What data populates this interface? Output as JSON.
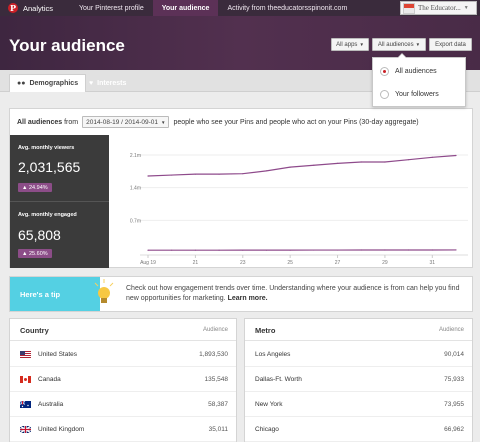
{
  "topnav": {
    "brand": "Analytics",
    "tabs": [
      {
        "label": "Your Pinterest profile"
      },
      {
        "label": "Your audience"
      },
      {
        "label": "Activity from theeducatorsspinonit.com"
      }
    ],
    "account_name": "The Educator..."
  },
  "header": {
    "title": "Your audience",
    "apps_button": "All apps",
    "audiences_button": "All audiences",
    "export_button": "Export data"
  },
  "subtabs": [
    {
      "label": "Demographics",
      "icon": "people-icon"
    },
    {
      "label": "Interests",
      "icon": "heart-icon"
    }
  ],
  "dropdown": {
    "options": [
      {
        "label": "All audiences",
        "selected": true
      },
      {
        "label": "Your followers",
        "selected": false
      }
    ]
  },
  "filter": {
    "prefix": "All audiences",
    "from": "from",
    "date_range": "2014-08-19 / 2014-09-01",
    "suffix": "people who see your Pins and people who act on your Pins (30-day aggregate)"
  },
  "stats": [
    {
      "label": "Avg. monthly viewers",
      "value": "2,031,565",
      "change": "24.94%"
    },
    {
      "label": "Avg. monthly engaged",
      "value": "65,808",
      "change": "25.60%"
    }
  ],
  "chart_data": {
    "type": "line",
    "x_ticks": [
      "Aug 19",
      "21",
      "23",
      "25",
      "27",
      "29",
      "31"
    ],
    "y_ticks": [
      "2.1m",
      "1.4m",
      "0.7m"
    ],
    "ylim": [
      0,
      2400000
    ],
    "x": [
      "Aug 19",
      "Aug 20",
      "Aug 21",
      "Aug 22",
      "Aug 23",
      "Aug 24",
      "Aug 25",
      "Aug 26",
      "Aug 27",
      "Aug 28",
      "Aug 29",
      "Aug 30",
      "Aug 31",
      "Sep 1"
    ],
    "series": [
      {
        "values": [
          1650000,
          1670000,
          1690000,
          1690000,
          1700000,
          1760000,
          1840000,
          1880000,
          1920000,
          1950000,
          1950000,
          2000000,
          2050000,
          2090000
        ]
      },
      {
        "values": [
          60000,
          60000,
          60000,
          60000,
          61000,
          62000,
          62000,
          63000,
          63000,
          64000,
          64000,
          65000,
          65000,
          66000
        ]
      }
    ],
    "color": "#8e4a8b"
  },
  "tip": {
    "heading": "Here's a tip",
    "text": "Check out how engagement trends over time. Understanding where your audience is from can help you find new opportunities for marketing.",
    "link": "Learn more."
  },
  "country_table": {
    "title": "Country",
    "column": "Audience",
    "rows": [
      {
        "name": "United States",
        "value": "1,893,530",
        "flag": "us-flag-icon"
      },
      {
        "name": "Canada",
        "value": "135,548",
        "flag": "canada-flag-icon"
      },
      {
        "name": "Australia",
        "value": "58,387",
        "flag": "australia-flag-icon"
      },
      {
        "name": "United Kingdom",
        "value": "35,011",
        "flag": "uk-flag-icon"
      }
    ]
  },
  "metro_table": {
    "title": "Metro",
    "column": "Audience",
    "rows": [
      {
        "name": "Los Angeles",
        "value": "90,014"
      },
      {
        "name": "Dallas-Ft. Worth",
        "value": "75,933"
      },
      {
        "name": "New York",
        "value": "73,955"
      },
      {
        "name": "Chicago",
        "value": "66,962"
      }
    ]
  }
}
